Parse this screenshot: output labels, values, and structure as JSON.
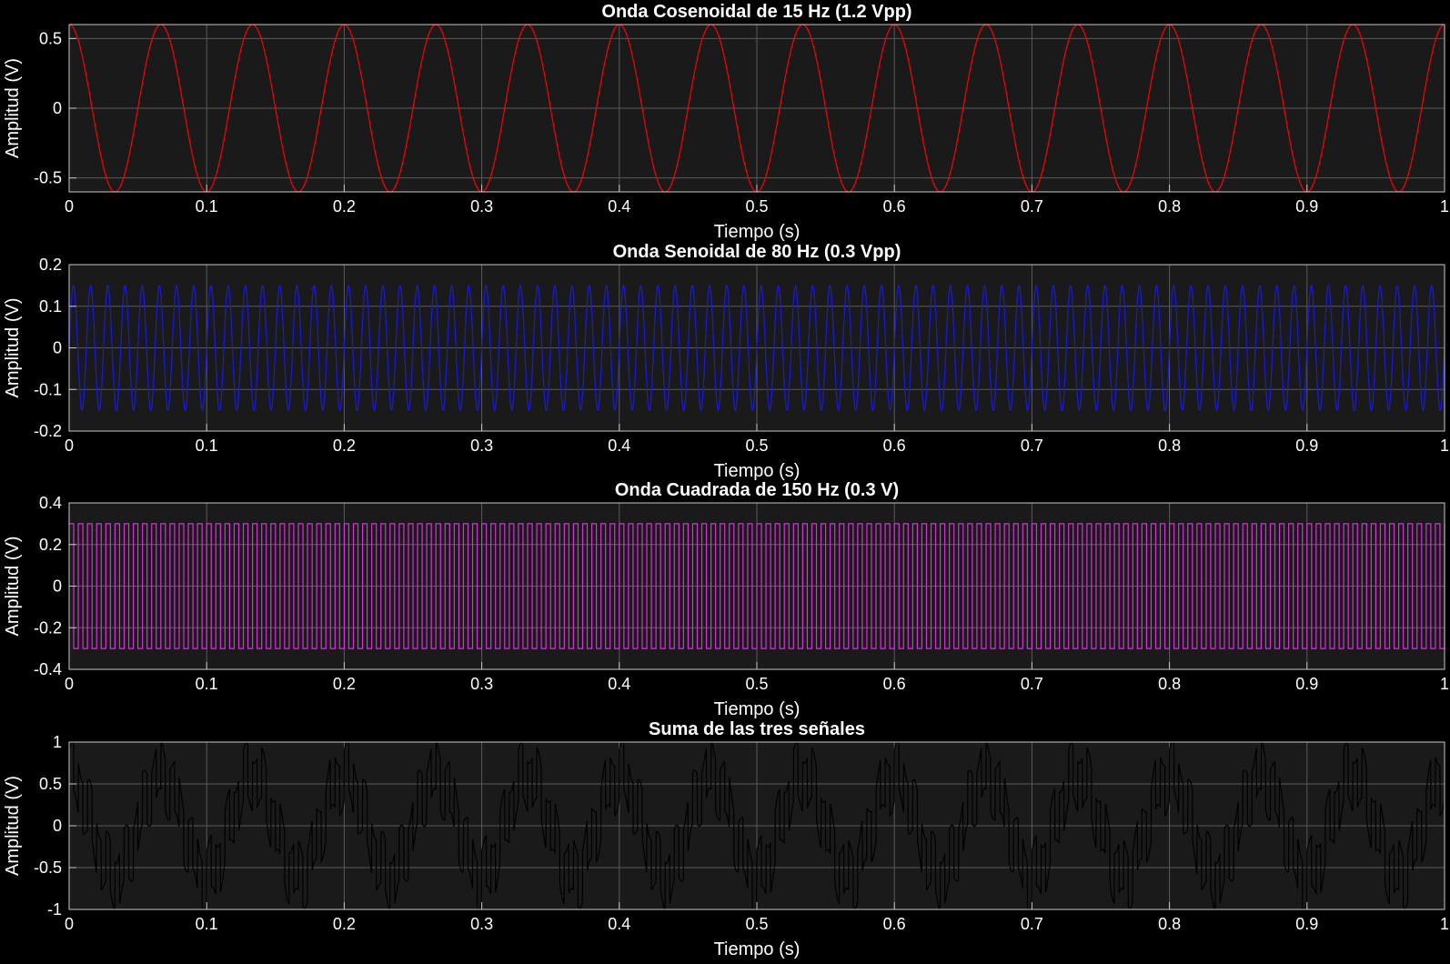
{
  "chart_data": [
    {
      "type": "line",
      "title": "Onda Cosenoidal de 15 Hz (1.2 Vpp)",
      "xlabel": "Tiempo (s)",
      "ylabel": "Amplitud (V)",
      "xlim": [
        0,
        1
      ],
      "ylim": [
        -0.6,
        0.6
      ],
      "xticks": [
        0,
        0.1,
        0.2,
        0.3,
        0.4,
        0.5,
        0.6,
        0.7,
        0.8,
        0.9,
        1
      ],
      "xtick_labels": [
        "0",
        "0.1",
        "0.2",
        "0.3",
        "0.4",
        "0.5",
        "0.6",
        "0.7",
        "0.8",
        "0.9",
        "1"
      ],
      "yticks": [
        -0.5,
        0,
        0.5
      ],
      "ytick_labels": [
        "-0.5",
        "0",
        "0.5"
      ],
      "grid": true,
      "series": [
        {
          "waveform": "cosine",
          "frequency_hz": 15,
          "amplitude_v": 0.6,
          "color": "#ff0000"
        }
      ]
    },
    {
      "type": "line",
      "title": "Onda Senoidal de 80 Hz (0.3 Vpp)",
      "xlabel": "Tiempo (s)",
      "ylabel": "Amplitud (V)",
      "xlim": [
        0,
        1
      ],
      "ylim": [
        -0.2,
        0.2
      ],
      "xticks": [
        0,
        0.1,
        0.2,
        0.3,
        0.4,
        0.5,
        0.6,
        0.7,
        0.8,
        0.9,
        1
      ],
      "xtick_labels": [
        "0",
        "0.1",
        "0.2",
        "0.3",
        "0.4",
        "0.5",
        "0.6",
        "0.7",
        "0.8",
        "0.9",
        "1"
      ],
      "yticks": [
        -0.2,
        -0.1,
        0,
        0.1,
        0.2
      ],
      "ytick_labels": [
        "-0.2",
        "-0.1",
        "0",
        "0.1",
        "0.2"
      ],
      "grid": true,
      "series": [
        {
          "waveform": "sine",
          "frequency_hz": 80,
          "amplitude_v": 0.15,
          "color": "#1a1ad9"
        }
      ]
    },
    {
      "type": "line",
      "title": "Onda Cuadrada de 150 Hz (0.3 V)",
      "xlabel": "Tiempo (s)",
      "ylabel": "Amplitud (V)",
      "xlim": [
        0,
        1
      ],
      "ylim": [
        -0.4,
        0.4
      ],
      "xticks": [
        0,
        0.1,
        0.2,
        0.3,
        0.4,
        0.5,
        0.6,
        0.7,
        0.8,
        0.9,
        1
      ],
      "xtick_labels": [
        "0",
        "0.1",
        "0.2",
        "0.3",
        "0.4",
        "0.5",
        "0.6",
        "0.7",
        "0.8",
        "0.9",
        "1"
      ],
      "yticks": [
        -0.4,
        -0.2,
        0,
        0.2,
        0.4
      ],
      "ytick_labels": [
        "-0.4",
        "-0.2",
        "0",
        "0.2",
        "0.4"
      ],
      "grid": true,
      "series": [
        {
          "waveform": "square",
          "frequency_hz": 150,
          "amplitude_v": 0.3,
          "color": "#d633d6"
        }
      ]
    },
    {
      "type": "line",
      "title": "Suma de las tres señales",
      "xlabel": "Tiempo (s)",
      "ylabel": "Amplitud (V)",
      "xlim": [
        0,
        1
      ],
      "ylim": [
        -1,
        1
      ],
      "xticks": [
        0,
        0.1,
        0.2,
        0.3,
        0.4,
        0.5,
        0.6,
        0.7,
        0.8,
        0.9,
        1
      ],
      "xtick_labels": [
        "0",
        "0.1",
        "0.2",
        "0.3",
        "0.4",
        "0.5",
        "0.6",
        "0.7",
        "0.8",
        "0.9",
        "1"
      ],
      "yticks": [
        -1,
        -0.5,
        0,
        0.5,
        1
      ],
      "ytick_labels": [
        "-1",
        "-0.5",
        "0",
        "0.5",
        "1"
      ],
      "grid": true,
      "series": [
        {
          "waveform": "sum",
          "components": [
            0,
            1,
            2
          ],
          "color": "#000000"
        }
      ]
    }
  ]
}
